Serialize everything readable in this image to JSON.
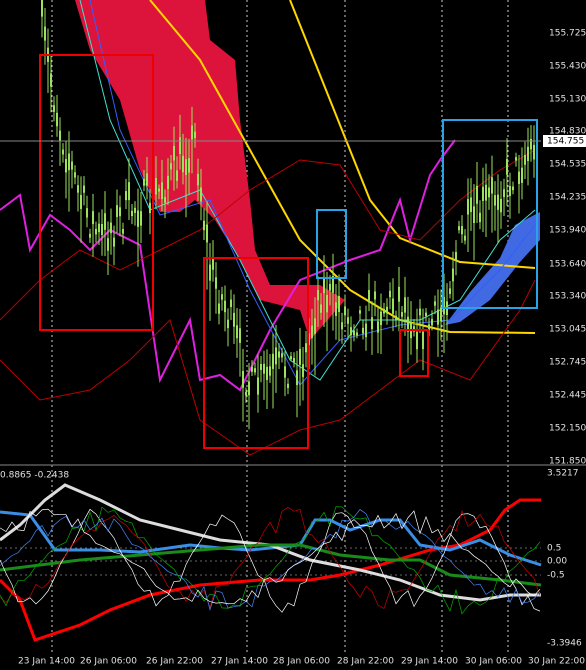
{
  "price_axis": {
    "labels": [
      "155.725",
      "155.430",
      "155.130",
      "154.830",
      "154.535",
      "154.235",
      "153.940",
      "153.640",
      "153.340",
      "153.045",
      "152.745",
      "152.445",
      "152.150",
      "151.850"
    ],
    "current_price": "154.755"
  },
  "time_axis": {
    "labels": [
      "23 Jan 14:00",
      "26 Jan 06:00",
      "26 Jan 22:00",
      "27 Jan 14:00",
      "28 Jan 06:00",
      "28 Jan 22:00",
      "29 Jan 14:00",
      "30 Jan 06:00",
      "30 Jan 22:00"
    ]
  },
  "indicator": {
    "header": "0.8865 -0.2438",
    "levels": [
      "3.5217",
      "0.5",
      "0.00",
      "-0.5",
      "-3.3946"
    ]
  }
}
